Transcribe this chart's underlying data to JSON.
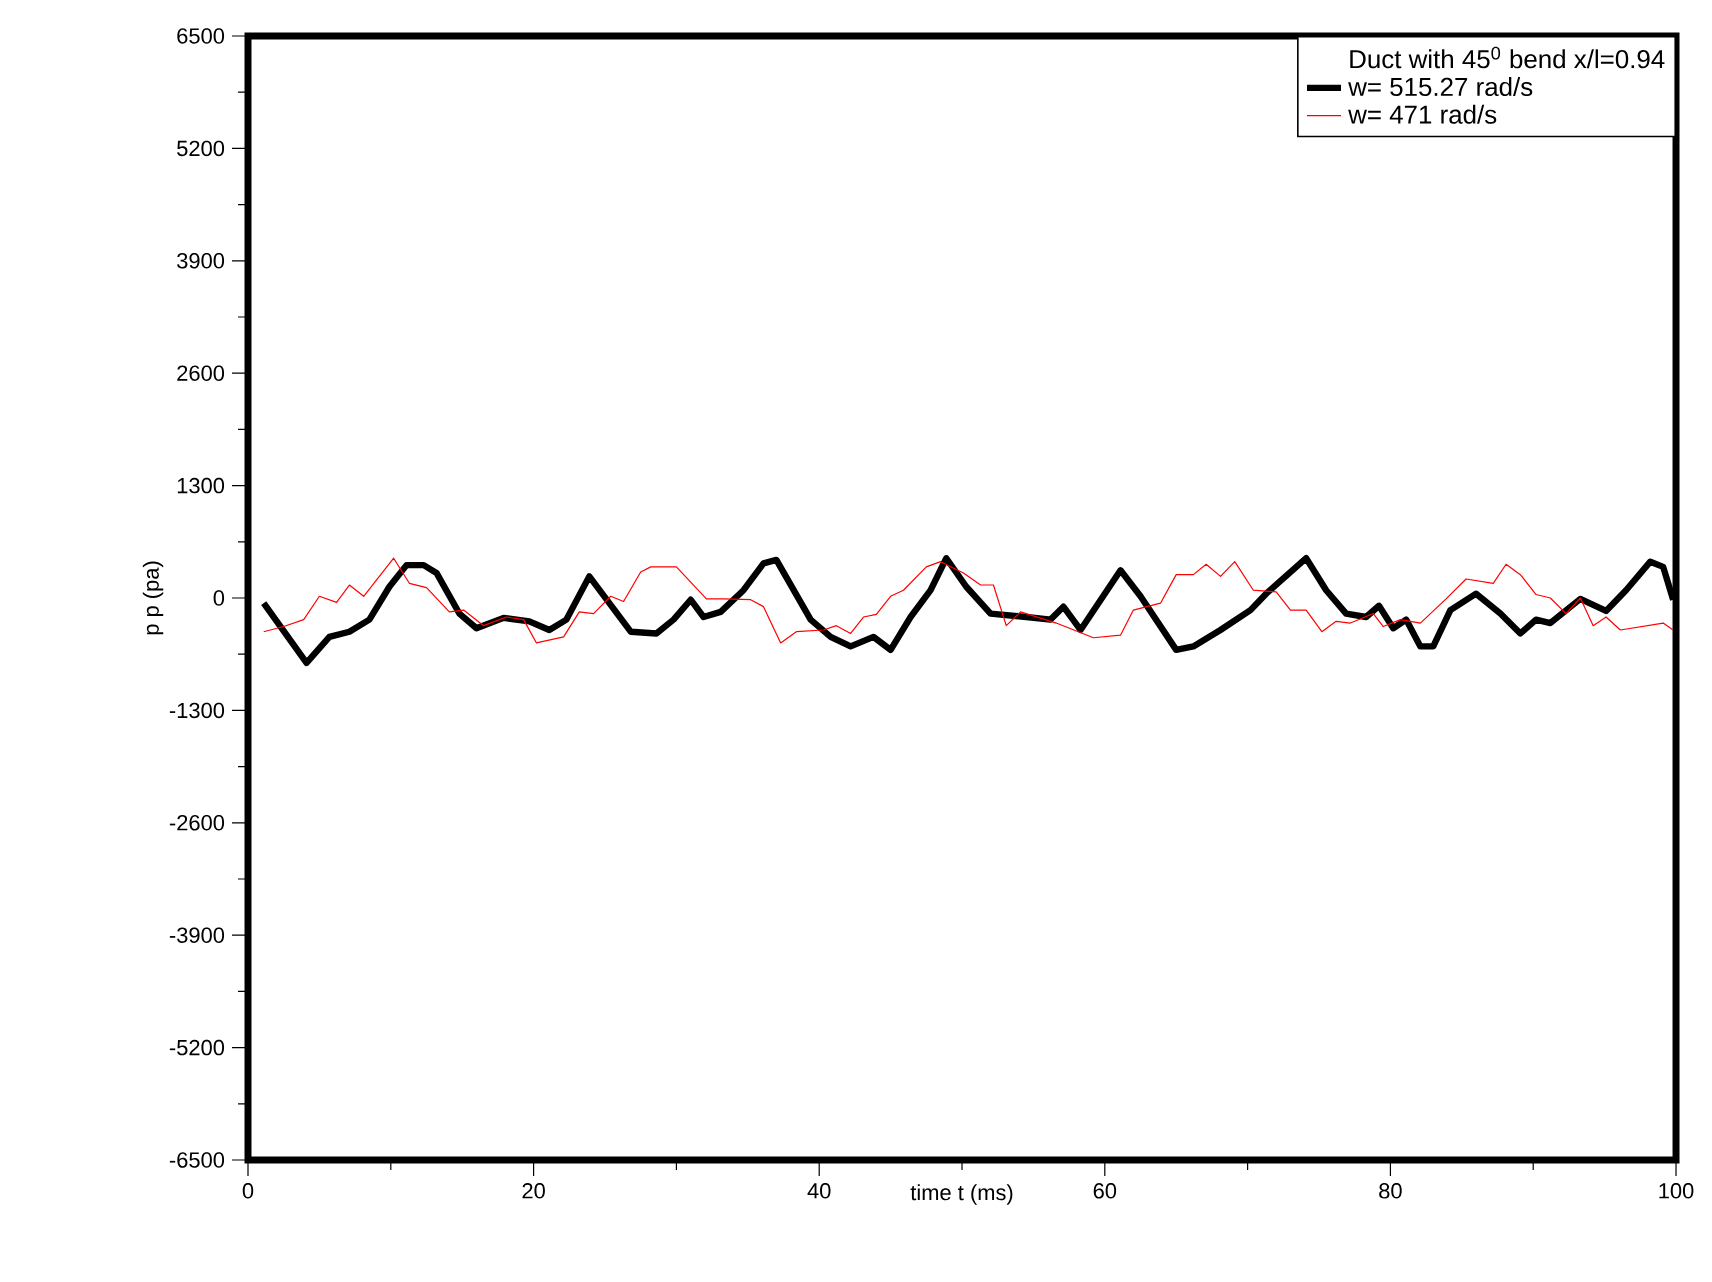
{
  "chart_data": {
    "type": "line",
    "legend_title": "Duct with 45$^{0}$ bend x/l=0.94",
    "xlabel": "time      t   (ms)",
    "ylabel": "p   p (pa)",
    "xlim": [
      0,
      100
    ],
    "ylim": [
      -6500,
      6500
    ],
    "xticks": [
      0,
      {
        "value": 10,
        "label": null
      },
      20,
      {
        "value": 30,
        "label": null
      },
      40,
      {
        "value": 50,
        "label": null
      },
      60,
      {
        "value": 70,
        "label": null
      },
      80,
      {
        "value": 90,
        "label": null
      },
      100
    ],
    "yticks": [
      -6500,
      {
        "value": -5850,
        "label": null
      },
      -5200,
      {
        "value": -4550,
        "label": null
      },
      -3900,
      {
        "value": -3250,
        "label": null
      },
      -2600,
      {
        "value": -1950,
        "label": null
      },
      -1300,
      {
        "value": -650,
        "label": null
      },
      0,
      {
        "value": 650,
        "label": null
      },
      1300,
      {
        "value": 1950,
        "label": null
      },
      2600,
      {
        "value": 3250,
        "label": null
      },
      3900,
      {
        "value": 4550,
        "label": null
      },
      5200,
      {
        "value": 5850,
        "label": null
      },
      6500
    ],
    "grid": false,
    "legend": "top right",
    "line_style": "solid",
    "marker": "none",
    "series": [
      {
        "name": "w=  515.27 rad/s",
        "color": "#000000",
        "x": [
          1.1,
          4.1,
          5.7,
          7.1,
          8.5,
          9.9,
          11.1,
          12.3,
          13.2,
          14.8,
          16.0,
          17.9,
          19.7,
          21.1,
          22.3,
          23.9,
          26.8,
          28.6,
          29.8,
          31.0,
          31.9,
          33.1,
          34.7,
          36.1,
          37.0,
          39.4,
          40.8,
          42.2,
          43.8,
          45.0,
          46.4,
          47.8,
          48.9,
          50.3,
          52.0,
          54.5,
          56.2,
          57.1,
          58.3,
          61.1,
          62.5,
          65.0,
          66.2,
          68.1,
          70.2,
          71.3,
          74.1,
          75.5,
          76.9,
          78.3,
          79.2,
          80.2,
          81.1,
          82.1,
          83.0,
          84.2,
          86.0,
          87.7,
          89.1,
          90.2,
          91.2,
          93.3,
          95.1,
          96.5,
          98.2,
          99.1,
          99.8
        ],
        "values": [
          -60,
          -750,
          -450,
          -390,
          -250,
          130,
          380,
          380,
          290,
          -180,
          -350,
          -230,
          -270,
          -370,
          -250,
          250,
          -390,
          -410,
          -250,
          -20,
          -220,
          -160,
          90,
          400,
          440,
          -250,
          -450,
          -560,
          -450,
          -600,
          -220,
          90,
          460,
          130,
          -180,
          -220,
          -250,
          -100,
          -370,
          320,
          20,
          -600,
          -560,
          -370,
          -140,
          50,
          460,
          90,
          -180,
          -220,
          -90,
          -350,
          -250,
          -560,
          -560,
          -140,
          50,
          -180,
          -410,
          -250,
          -290,
          -10,
          -150,
          90,
          420,
          360,
          -20
        ]
      },
      {
        "name": "w= 471  rad/s",
        "color": "#ff0000",
        "x": [
          1.1,
          2.5,
          3.9,
          5.0,
          6.2,
          7.1,
          8.1,
          10.2,
          11.3,
          12.5,
          14.1,
          15.1,
          16.5,
          18.1,
          19.3,
          20.2,
          22.1,
          23.2,
          24.2,
          25.4,
          26.3,
          27.5,
          28.2,
          30.0,
          32.1,
          33.3,
          35.2,
          36.1,
          37.3,
          38.4,
          40.3,
          41.2,
          42.2,
          43.1,
          44.0,
          45.0,
          45.9,
          47.5,
          48.5,
          50.1,
          51.3,
          52.2,
          53.1,
          54.1,
          56.6,
          59.2,
          61.1,
          62.0,
          63.9,
          65.0,
          66.2,
          67.1,
          68.1,
          69.1,
          70.4,
          72.0,
          73.0,
          74.1,
          75.2,
          76.2,
          77.2,
          78.8,
          79.5,
          80.7,
          82.1,
          83.9,
          85.3,
          87.2,
          88.1,
          89.1,
          90.2,
          91.2,
          92.3,
          93.3,
          94.2,
          95.1,
          96.1,
          99.1,
          99.8
        ],
        "values": [
          -390,
          -330,
          -250,
          20,
          -50,
          150,
          20,
          460,
          170,
          120,
          -160,
          -140,
          -320,
          -220,
          -250,
          -520,
          -450,
          -160,
          -180,
          20,
          -40,
          300,
          360,
          360,
          -10,
          -10,
          -20,
          -100,
          -520,
          -390,
          -370,
          -320,
          -410,
          -220,
          -190,
          20,
          90,
          360,
          420,
          290,
          150,
          150,
          -320,
          -160,
          -290,
          -460,
          -430,
          -140,
          -60,
          270,
          270,
          390,
          250,
          420,
          90,
          70,
          -140,
          -140,
          -390,
          -270,
          -290,
          -180,
          -330,
          -250,
          -290,
          -10,
          220,
          170,
          390,
          270,
          40,
          0,
          -180,
          0,
          -320,
          -220,
          -370,
          -290,
          -370
        ]
      }
    ]
  }
}
